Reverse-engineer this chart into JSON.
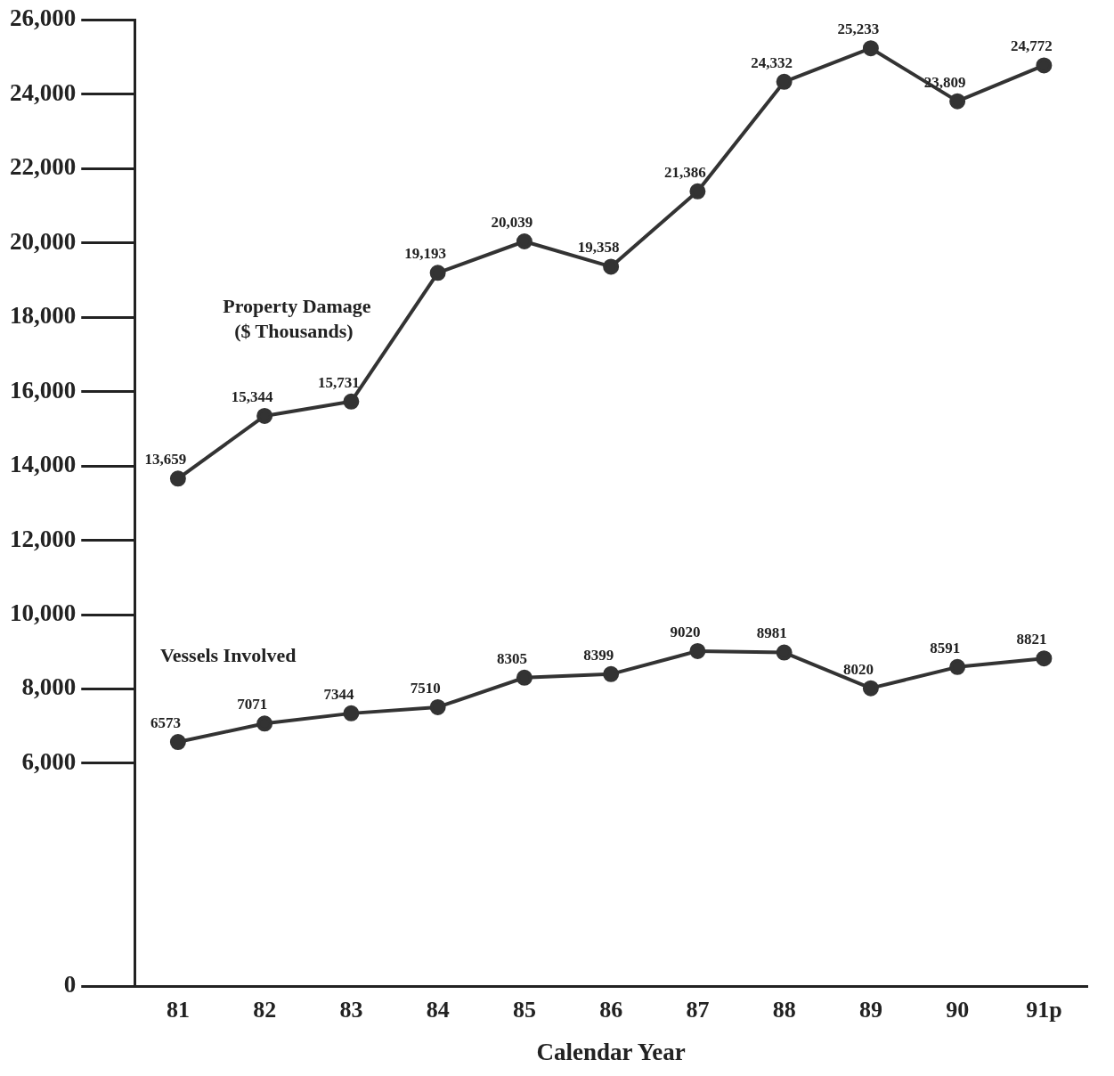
{
  "chart_data": {
    "type": "line",
    "xlabel": "Calendar Year",
    "categories": [
      "81",
      "82",
      "83",
      "84",
      "85",
      "86",
      "87",
      "88",
      "89",
      "90",
      "91p"
    ],
    "series": [
      {
        "name": "Property Damage ($ Thousands)",
        "color": "#333333",
        "values": [
          13659,
          15344,
          15731,
          19193,
          20039,
          19358,
          21386,
          24332,
          25233,
          23809,
          24772
        ],
        "value_labels": [
          "13,659",
          "15,344",
          "15,731",
          "19,193",
          "20,039",
          "19,358",
          "21,386",
          "24,332",
          "25,233",
          "23,809",
          "24,772"
        ]
      },
      {
        "name": "Vessels Involved",
        "color": "#333333",
        "values": [
          6573,
          7071,
          7344,
          7510,
          8305,
          8399,
          9020,
          8981,
          8020,
          8591,
          8821
        ],
        "value_labels": [
          "6573",
          "7071",
          "7344",
          "7510",
          "8305",
          "8399",
          "9020",
          "8981",
          "8020",
          "8591",
          "8821"
        ]
      }
    ],
    "ylim": [
      0,
      26000
    ],
    "yticks": [
      0,
      {
        "value": 6000,
        "label": "6,000"
      },
      {
        "value": 8000,
        "label": "8,000"
      },
      {
        "value": 10000,
        "label": "10,000"
      },
      {
        "value": 12000,
        "label": "12,000"
      },
      {
        "value": 14000,
        "label": "14,000"
      },
      {
        "value": 16000,
        "label": "16,000"
      },
      {
        "value": 18000,
        "label": "18,000"
      },
      {
        "value": 20000,
        "label": "20,000"
      },
      {
        "value": 22000,
        "label": "22,000"
      },
      {
        "value": 24000,
        "label": "24,000"
      },
      {
        "value": 26000,
        "label": "26,000"
      }
    ],
    "grid": false,
    "legend": false,
    "marker": "circle",
    "line_style": "solid"
  }
}
